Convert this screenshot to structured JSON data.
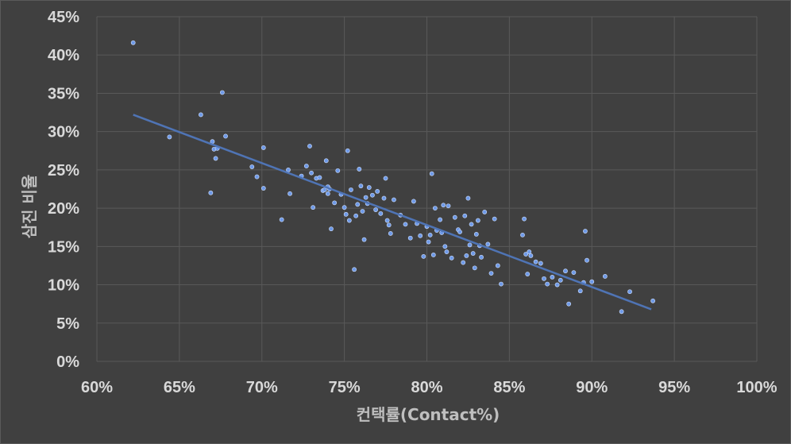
{
  "chart_data": {
    "type": "scatter",
    "title": "",
    "xlabel": "컨택률(Contact%)",
    "ylabel": "삼진 비율",
    "xlim": [
      60,
      100
    ],
    "ylim": [
      0,
      45
    ],
    "x_ticks": [
      60,
      65,
      70,
      75,
      80,
      85,
      90,
      95,
      100
    ],
    "y_ticks": [
      0,
      5,
      10,
      15,
      20,
      25,
      30,
      35,
      40,
      45
    ],
    "x_tick_labels": [
      "60%",
      "65%",
      "70%",
      "75%",
      "80%",
      "85%",
      "90%",
      "95%",
      "100%"
    ],
    "y_tick_labels": [
      "0%",
      "5%",
      "10%",
      "15%",
      "20%",
      "25%",
      "30%",
      "35%",
      "40%",
      "45%"
    ],
    "grid": true,
    "trendline": {
      "x": [
        62.2,
        93.6
      ],
      "y": [
        32.2,
        6.8
      ]
    },
    "colors": {
      "points": "#6f9ae8",
      "trendline": "#4f74b5",
      "background": "#404040",
      "grid": "#595959"
    },
    "series": [
      {
        "x": [
          62.2,
          64.4,
          66.3,
          66.9,
          67.0,
          67.1,
          67.2,
          67.3,
          67.6,
          67.8,
          69.4,
          69.7,
          70.1,
          70.1,
          71.2,
          71.6,
          71.7,
          72.4,
          72.7,
          72.9,
          73.0,
          73.1,
          73.3,
          73.5,
          73.7,
          73.8,
          73.9,
          74.0,
          74.0,
          74.1,
          74.2,
          74.4,
          74.6,
          74.8,
          75.0,
          75.1,
          75.2,
          75.3,
          75.4,
          75.6,
          75.7,
          75.8,
          75.9,
          76.0,
          76.1,
          76.2,
          76.3,
          76.4,
          76.5,
          76.7,
          76.9,
          77.0,
          77.2,
          77.4,
          77.5,
          77.6,
          77.7,
          77.8,
          78.0,
          78.4,
          78.7,
          79.0,
          79.2,
          79.4,
          79.6,
          79.8,
          80.0,
          80.1,
          80.2,
          80.3,
          80.4,
          80.5,
          80.6,
          80.8,
          80.9,
          81.0,
          81.1,
          81.2,
          81.3,
          81.5,
          81.7,
          81.9,
          82.0,
          82.2,
          82.3,
          82.4,
          82.5,
          82.6,
          82.7,
          82.8,
          82.9,
          83.0,
          83.1,
          83.2,
          83.3,
          83.5,
          83.7,
          83.9,
          84.1,
          84.3,
          84.5,
          85.8,
          85.9,
          86.0,
          86.1,
          86.2,
          86.3,
          86.6,
          86.9,
          87.1,
          87.3,
          87.6,
          87.9,
          88.1,
          88.4,
          88.6,
          88.9,
          89.3,
          89.5,
          89.6,
          89.7,
          90.0,
          90.8,
          91.8,
          92.3,
          93.7
        ],
        "y": [
          41.6,
          29.3,
          32.2,
          22.0,
          28.7,
          27.7,
          26.5,
          27.8,
          35.1,
          29.4,
          25.4,
          24.1,
          27.9,
          22.6,
          18.5,
          25.0,
          21.9,
          24.2,
          25.5,
          28.1,
          24.6,
          20.1,
          23.9,
          24.0,
          22.3,
          22.4,
          26.2,
          21.9,
          22.8,
          22.5,
          17.3,
          20.7,
          24.9,
          21.8,
          20.1,
          19.2,
          27.5,
          18.4,
          22.4,
          12.0,
          19.0,
          20.5,
          25.1,
          22.9,
          19.6,
          15.9,
          21.4,
          20.6,
          22.7,
          21.7,
          19.8,
          22.2,
          19.3,
          21.3,
          23.9,
          18.4,
          17.8,
          16.7,
          21.1,
          19.1,
          17.9,
          16.1,
          20.9,
          18.0,
          16.4,
          13.7,
          17.6,
          15.6,
          16.5,
          24.5,
          13.9,
          20.0,
          17.1,
          18.5,
          16.8,
          20.4,
          15.0,
          14.3,
          20.3,
          13.5,
          18.8,
          17.2,
          16.9,
          12.9,
          19.0,
          13.8,
          21.3,
          15.2,
          17.9,
          14.1,
          12.2,
          16.6,
          18.4,
          15.1,
          13.6,
          19.5,
          15.3,
          11.5,
          18.6,
          12.5,
          10.1,
          16.5,
          18.6,
          14.0,
          11.4,
          14.3,
          13.8,
          13.0,
          12.8,
          10.8,
          10.1,
          11.0,
          10.0,
          10.6,
          11.8,
          7.5,
          11.6,
          9.2,
          10.3,
          17.0,
          13.2,
          10.4,
          11.1,
          6.5,
          9.1,
          7.9
        ]
      }
    ]
  }
}
